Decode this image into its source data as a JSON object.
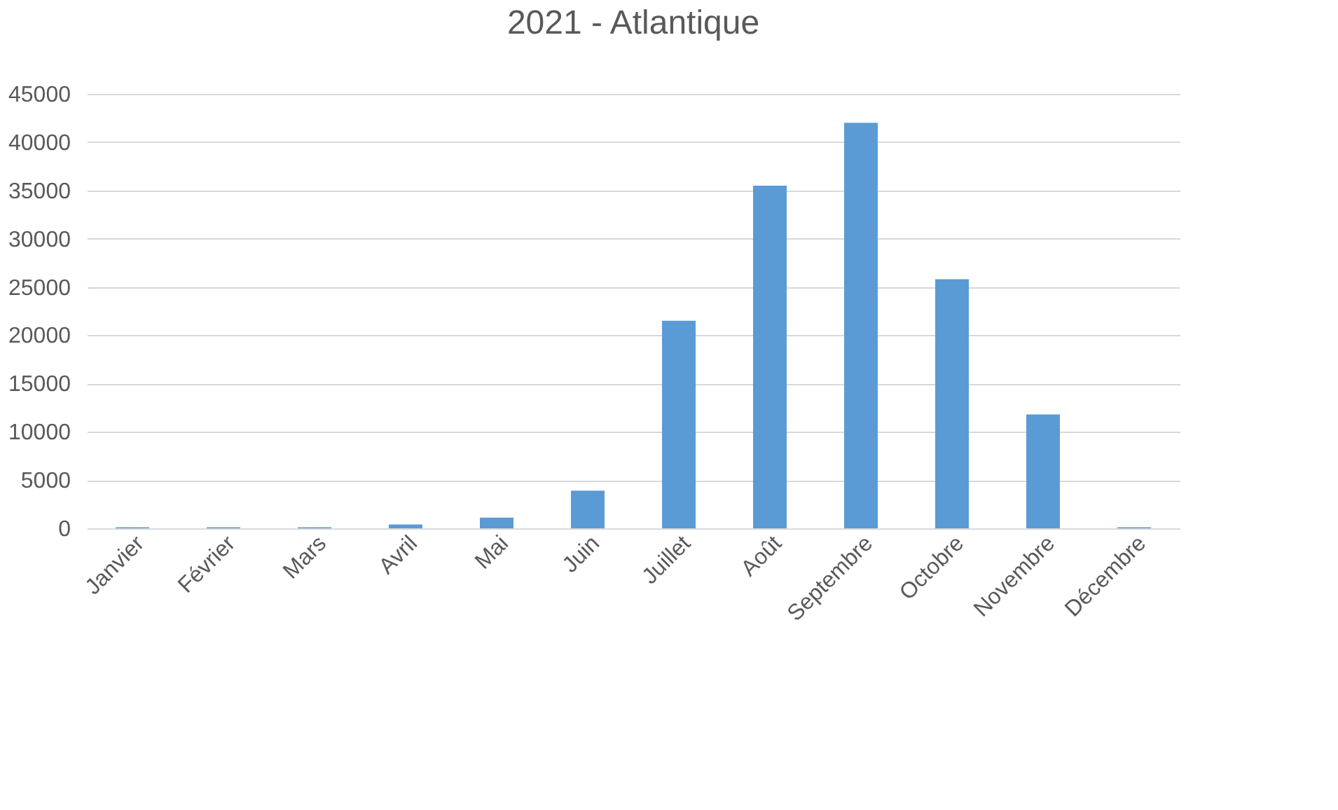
{
  "chart_data": {
    "type": "bar",
    "title": "2021 - Atlantique",
    "categories": [
      "Janvier",
      "Février",
      "Mars",
      "Avril",
      "Mai",
      "Juin",
      "Juillet",
      "Août",
      "Septembre",
      "Octobre",
      "Novembre",
      "Décembre"
    ],
    "values": [
      100,
      100,
      100,
      400,
      1100,
      3900,
      21500,
      35500,
      42000,
      25800,
      11800,
      100
    ],
    "color": "#5b9bd5",
    "ylim": [
      0,
      45000
    ],
    "yticks": [
      0,
      5000,
      10000,
      15000,
      20000,
      25000,
      30000,
      35000,
      40000,
      45000
    ],
    "grid": "y"
  }
}
